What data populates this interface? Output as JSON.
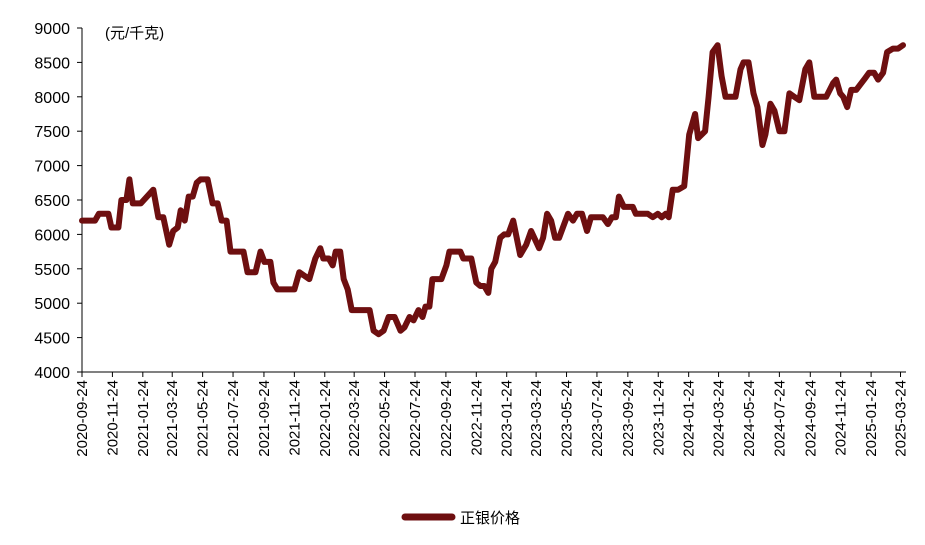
{
  "chart_data": {
    "type": "line",
    "unit_label": "(元/千克)",
    "ylim": [
      4000,
      9000
    ],
    "y_ticks": [
      4000,
      4500,
      5000,
      5500,
      6000,
      6500,
      7000,
      7500,
      8000,
      8500,
      9000
    ],
    "x_tick_labels": [
      "2020-09-24",
      "2020-11-24",
      "2021-01-24",
      "2021-03-24",
      "2021-05-24",
      "2021-07-24",
      "2021-09-24",
      "2021-11-24",
      "2022-01-24",
      "2022-03-24",
      "2022-05-24",
      "2022-07-24",
      "2022-09-24",
      "2022-11-24",
      "2023-01-24",
      "2023-03-24",
      "2023-05-24",
      "2023-07-24",
      "2023-09-24",
      "2023-11-24",
      "2024-01-24",
      "2024-03-24",
      "2024-05-24",
      "2024-07-24",
      "2024-09-24",
      "2024-11-24",
      "2025-01-24",
      "2025-03-24"
    ],
    "x_range": [
      "2020-09-24",
      "2025-04-04"
    ],
    "grid": false,
    "legend_position": "bottom",
    "series": [
      {
        "name": "正银价格",
        "color": "#6e0f10",
        "points": [
          [
            "2020-09-24",
            6200
          ],
          [
            "2020-10-20",
            6200
          ],
          [
            "2020-10-28",
            6300
          ],
          [
            "2020-11-16",
            6300
          ],
          [
            "2020-11-22",
            6100
          ],
          [
            "2020-12-06",
            6100
          ],
          [
            "2020-12-12",
            6500
          ],
          [
            "2020-12-22",
            6500
          ],
          [
            "2020-12-28",
            6800
          ],
          [
            "2021-01-04",
            6450
          ],
          [
            "2021-01-20",
            6450
          ],
          [
            "2021-02-14",
            6650
          ],
          [
            "2021-02-24",
            6250
          ],
          [
            "2021-03-06",
            6250
          ],
          [
            "2021-03-18",
            5850
          ],
          [
            "2021-03-26",
            6050
          ],
          [
            "2021-04-04",
            6100
          ],
          [
            "2021-04-10",
            6350
          ],
          [
            "2021-04-18",
            6200
          ],
          [
            "2021-04-26",
            6550
          ],
          [
            "2021-05-04",
            6550
          ],
          [
            "2021-05-12",
            6750
          ],
          [
            "2021-05-20",
            6800
          ],
          [
            "2021-06-03",
            6800
          ],
          [
            "2021-06-13",
            6450
          ],
          [
            "2021-06-23",
            6450
          ],
          [
            "2021-07-01",
            6200
          ],
          [
            "2021-07-11",
            6200
          ],
          [
            "2021-07-19",
            5750
          ],
          [
            "2021-08-14",
            5750
          ],
          [
            "2021-08-22",
            5450
          ],
          [
            "2021-09-07",
            5450
          ],
          [
            "2021-09-17",
            5750
          ],
          [
            "2021-09-25",
            5600
          ],
          [
            "2021-10-07",
            5600
          ],
          [
            "2021-10-13",
            5300
          ],
          [
            "2021-10-21",
            5200
          ],
          [
            "2021-11-18",
            5200
          ],
          [
            "2021-11-24",
            5200
          ],
          [
            "2021-12-04",
            5450
          ],
          [
            "2021-12-14",
            5400
          ],
          [
            "2021-12-24",
            5350
          ],
          [
            "2022-01-05",
            5650
          ],
          [
            "2022-01-15",
            5800
          ],
          [
            "2022-01-21",
            5650
          ],
          [
            "2022-02-01",
            5650
          ],
          [
            "2022-02-09",
            5550
          ],
          [
            "2022-02-15",
            5750
          ],
          [
            "2022-02-24",
            5750
          ],
          [
            "2022-03-03",
            5350
          ],
          [
            "2022-03-11",
            5200
          ],
          [
            "2022-03-19",
            4900
          ],
          [
            "2022-04-24",
            4900
          ],
          [
            "2022-05-02",
            4600
          ],
          [
            "2022-05-12",
            4550
          ],
          [
            "2022-05-22",
            4600
          ],
          [
            "2022-06-01",
            4800
          ],
          [
            "2022-06-13",
            4800
          ],
          [
            "2022-06-25",
            4600
          ],
          [
            "2022-07-03",
            4650
          ],
          [
            "2022-07-13",
            4800
          ],
          [
            "2022-07-21",
            4750
          ],
          [
            "2022-07-31",
            4900
          ],
          [
            "2022-08-08",
            4800
          ],
          [
            "2022-08-14",
            4950
          ],
          [
            "2022-08-22",
            4950
          ],
          [
            "2022-08-28",
            5350
          ],
          [
            "2022-09-15",
            5350
          ],
          [
            "2022-09-25",
            5550
          ],
          [
            "2022-10-01",
            5750
          ],
          [
            "2022-10-23",
            5750
          ],
          [
            "2022-10-29",
            5650
          ],
          [
            "2022-11-14",
            5650
          ],
          [
            "2022-11-24",
            5300
          ],
          [
            "2022-12-02",
            5250
          ],
          [
            "2022-12-10",
            5250
          ],
          [
            "2022-12-18",
            5150
          ],
          [
            "2022-12-24",
            5500
          ],
          [
            "2023-01-01",
            5600
          ],
          [
            "2023-01-11",
            5950
          ],
          [
            "2023-01-19",
            6000
          ],
          [
            "2023-01-27",
            6000
          ],
          [
            "2023-02-06",
            6200
          ],
          [
            "2023-02-20",
            5700
          ],
          [
            "2023-03-04",
            5850
          ],
          [
            "2023-03-14",
            6050
          ],
          [
            "2023-03-30",
            5800
          ],
          [
            "2023-04-07",
            5950
          ],
          [
            "2023-04-15",
            6300
          ],
          [
            "2023-04-23",
            6200
          ],
          [
            "2023-05-01",
            5950
          ],
          [
            "2023-05-09",
            5950
          ],
          [
            "2023-05-27",
            6300
          ],
          [
            "2023-06-06",
            6200
          ],
          [
            "2023-06-14",
            6300
          ],
          [
            "2023-06-24",
            6300
          ],
          [
            "2023-07-04",
            6050
          ],
          [
            "2023-07-12",
            6250
          ],
          [
            "2023-08-05",
            6250
          ],
          [
            "2023-08-15",
            6150
          ],
          [
            "2023-08-23",
            6250
          ],
          [
            "2023-08-31",
            6250
          ],
          [
            "2023-09-06",
            6550
          ],
          [
            "2023-09-16",
            6400
          ],
          [
            "2023-10-04",
            6400
          ],
          [
            "2023-10-10",
            6300
          ],
          [
            "2023-11-03",
            6300
          ],
          [
            "2023-11-13",
            6250
          ],
          [
            "2023-11-23",
            6300
          ],
          [
            "2023-12-01",
            6250
          ],
          [
            "2023-12-09",
            6300
          ],
          [
            "2023-12-15",
            6250
          ],
          [
            "2023-12-23",
            6650
          ],
          [
            "2024-01-03",
            6650
          ],
          [
            "2024-01-15",
            6700
          ],
          [
            "2024-01-25",
            7450
          ],
          [
            "2024-02-06",
            7750
          ],
          [
            "2024-02-12",
            7400
          ],
          [
            "2024-02-26",
            7500
          ],
          [
            "2024-03-04",
            8000
          ],
          [
            "2024-03-12",
            8650
          ],
          [
            "2024-03-22",
            8750
          ],
          [
            "2024-03-30",
            8300
          ],
          [
            "2024-04-07",
            8000
          ],
          [
            "2024-04-27",
            8000
          ],
          [
            "2024-05-07",
            8400
          ],
          [
            "2024-05-13",
            8500
          ],
          [
            "2024-05-23",
            8500
          ],
          [
            "2024-06-02",
            8050
          ],
          [
            "2024-06-10",
            7850
          ],
          [
            "2024-06-20",
            7300
          ],
          [
            "2024-06-26",
            7450
          ],
          [
            "2024-07-06",
            7900
          ],
          [
            "2024-07-14",
            7800
          ],
          [
            "2024-07-24",
            7500
          ],
          [
            "2024-08-03",
            7500
          ],
          [
            "2024-08-13",
            8050
          ],
          [
            "2024-08-23",
            8000
          ],
          [
            "2024-09-02",
            7950
          ],
          [
            "2024-09-14",
            8400
          ],
          [
            "2024-09-22",
            8500
          ],
          [
            "2024-10-02",
            8000
          ],
          [
            "2024-10-10",
            8000
          ],
          [
            "2024-10-26",
            8000
          ],
          [
            "2024-11-09",
            8200
          ],
          [
            "2024-11-15",
            8250
          ],
          [
            "2024-11-23",
            8050
          ],
          [
            "2024-11-29",
            8000
          ],
          [
            "2024-12-07",
            7850
          ],
          [
            "2024-12-15",
            8100
          ],
          [
            "2024-12-25",
            8100
          ],
          [
            "2025-01-10",
            8250
          ],
          [
            "2025-01-20",
            8350
          ],
          [
            "2025-01-30",
            8350
          ],
          [
            "2025-02-07",
            8250
          ],
          [
            "2025-02-17",
            8350
          ],
          [
            "2025-02-25",
            8650
          ],
          [
            "2025-03-09",
            8700
          ],
          [
            "2025-03-19",
            8700
          ],
          [
            "2025-03-29",
            8750
          ]
        ]
      }
    ]
  }
}
